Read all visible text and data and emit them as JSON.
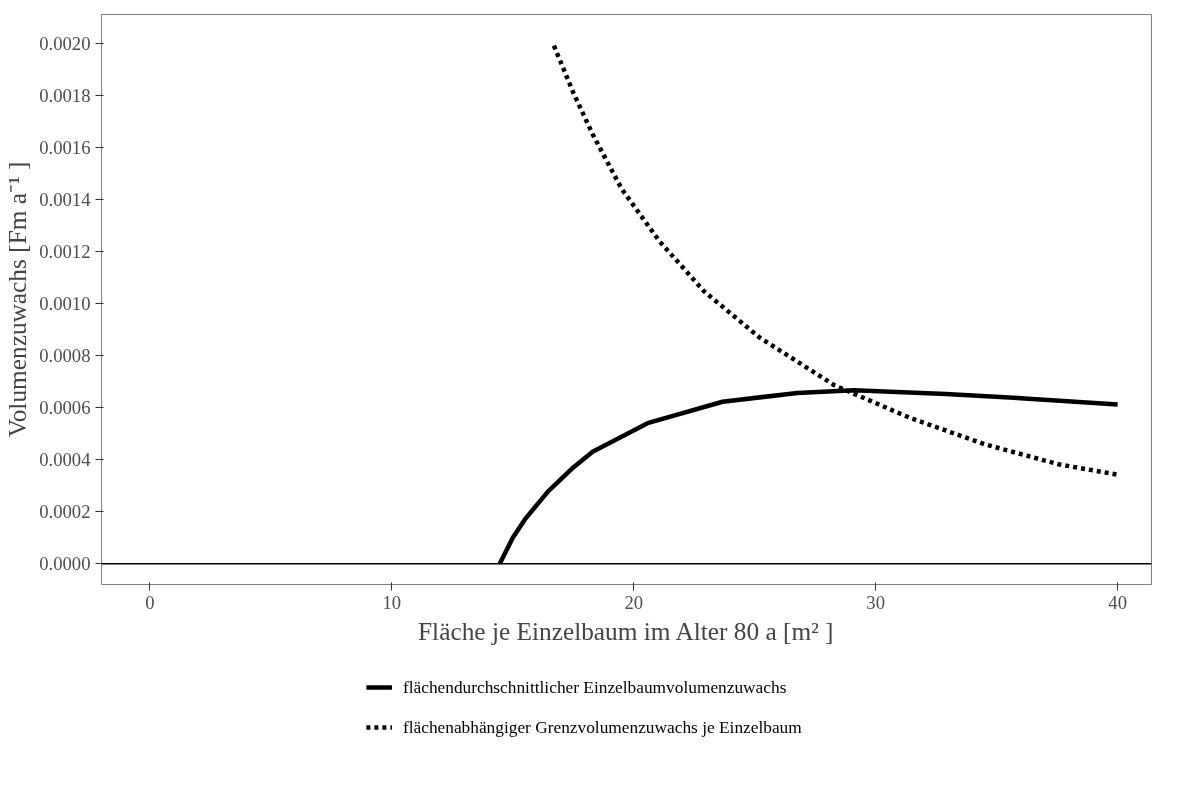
{
  "chart_data": {
    "type": "line",
    "xlabel": "Fläche je Einzelbaum im Alter 80 a [m² ]",
    "ylabel": "Volumenzuwachs [Fm a⁻¹ ]",
    "xlim": [
      -2,
      41.4
    ],
    "xticks": [
      0,
      10,
      20,
      30,
      40
    ],
    "ylim": [
      -8e-05,
      0.00211
    ],
    "yticks": [
      {
        "value": 0,
        "label": "0.0000"
      },
      {
        "value": 0.0002,
        "label": "0.0002"
      },
      {
        "value": 0.0004,
        "label": "0.0004"
      },
      {
        "value": 0.0006,
        "label": "0.0006"
      },
      {
        "value": 0.0008,
        "label": "0.0008"
      },
      {
        "value": 0.001,
        "label": "0.0010"
      },
      {
        "value": 0.0012,
        "label": "0.0012"
      },
      {
        "value": 0.0014,
        "label": "0.0014"
      },
      {
        "value": 0.0016,
        "label": "0.0016"
      },
      {
        "value": 0.0018,
        "label": "0.0018"
      },
      {
        "value": 0.002,
        "label": "0.0020"
      }
    ],
    "grid": false,
    "legend": "bottom",
    "ref_lines": [
      {
        "axis": "y",
        "value": 0,
        "color": "#000000",
        "line_style": "solid"
      }
    ],
    "series": [
      {
        "name": "flächendurchschnittlicher Einzelbaumvolumenzuwachs",
        "color": "#000000",
        "line_style": "solid",
        "x": [
          14.46,
          15.0,
          15.5,
          16.45,
          17.49,
          18.3,
          20.57,
          23.67,
          26.76,
          29.1,
          32.9,
          36.0,
          40.0
        ],
        "values": [
          0,
          0.0001,
          0.00017,
          0.000277,
          0.000369,
          0.00043,
          0.00054,
          0.000622,
          0.000656,
          0.000666,
          0.000652,
          0.000636,
          0.000612
        ]
      },
      {
        "name": "flächenabhängiger Grenzvolumenzuwachs je Einzelbaum",
        "color": "#000000",
        "line_style": "dotted",
        "x": [
          16.7,
          17.5,
          18.3,
          19.5,
          21.05,
          22.9,
          25.2,
          28.3,
          31.4,
          34.5,
          37.55,
          40.0
        ],
        "values": [
          0.00199,
          0.00181,
          0.00165,
          0.00144,
          0.00124,
          0.001047,
          0.000869,
          0.000685,
          0.000561,
          0.000459,
          0.000382,
          0.000342
        ]
      }
    ]
  }
}
